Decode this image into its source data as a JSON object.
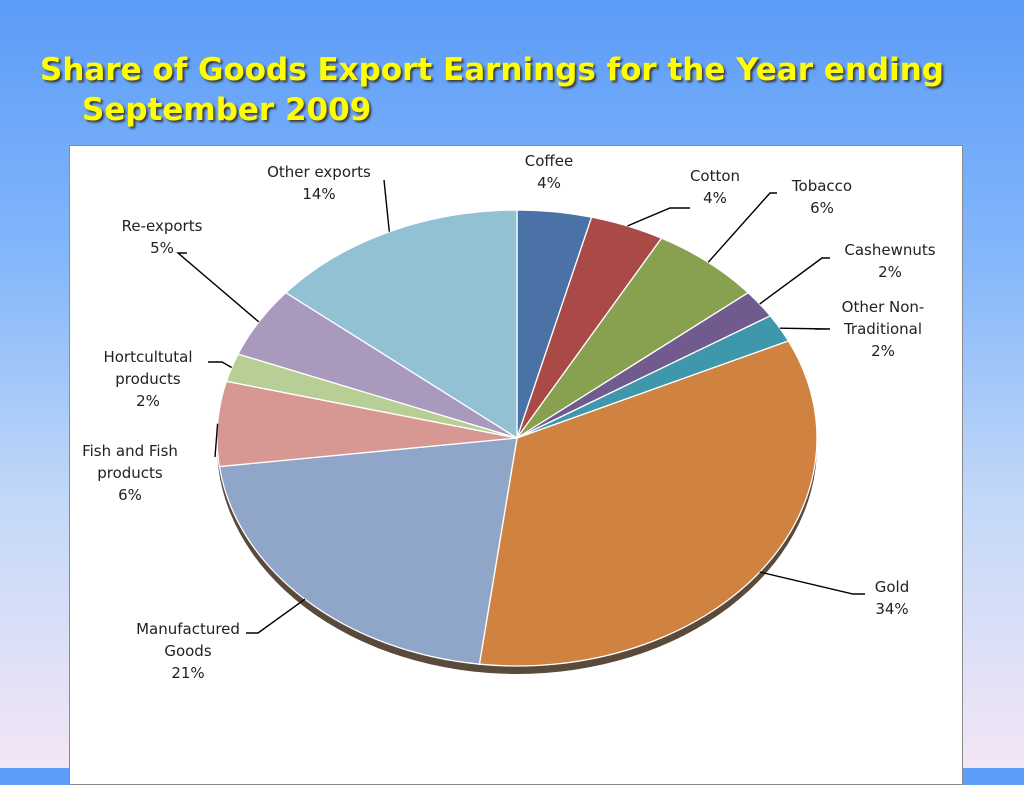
{
  "slide": {
    "title_line1": "Share of Goods Export Earnings for the Year ending",
    "title_line2": "September 2009"
  },
  "chart_data": {
    "type": "pie",
    "title": "Share of Goods Export Earnings for the Year ending September 2009",
    "start_angle_deg": 0,
    "direction": "clockwise",
    "slices": [
      {
        "name": "Coffee",
        "label_lines": [
          "Coffee"
        ],
        "value": 4,
        "value_label": "4%",
        "color": "#4a72a6"
      },
      {
        "name": "Cotton",
        "label_lines": [
          "Cotton"
        ],
        "value": 4,
        "value_label": "4%",
        "color": "#a94a47"
      },
      {
        "name": "Tobacco",
        "label_lines": [
          "Tobacco"
        ],
        "value": 6,
        "value_label": "6%",
        "color": "#87a150"
      },
      {
        "name": "Cashewnuts",
        "label_lines": [
          "Cashewnuts"
        ],
        "value": 2,
        "value_label": "2%",
        "color": "#715a8d"
      },
      {
        "name": "Other Non-Traditional",
        "label_lines": [
          "Other Non-",
          "Traditional"
        ],
        "value": 2,
        "value_label": "2%",
        "color": "#3f97ab"
      },
      {
        "name": "Gold",
        "label_lines": [
          "Gold"
        ],
        "value": 34,
        "value_label": "34%",
        "color": "#d08341"
      },
      {
        "name": "Manufactured Goods",
        "label_lines": [
          "Manufactured",
          "Goods"
        ],
        "value": 21,
        "value_label": "21%",
        "color": "#90a6c9"
      },
      {
        "name": "Fish and Fish products",
        "label_lines": [
          "Fish and Fish",
          "products"
        ],
        "value": 6,
        "value_label": "6%",
        "color": "#d79793"
      },
      {
        "name": "Hortcultutal products",
        "label_lines": [
          "Hortcultutal",
          "products"
        ],
        "value": 2,
        "value_label": "2%",
        "color": "#b7cf94"
      },
      {
        "name": "Re-exports",
        "label_lines": [
          "Re-exports"
        ],
        "value": 5,
        "value_label": "5%",
        "color": "#a899bd"
      },
      {
        "name": "Other exports",
        "label_lines": [
          "Other exports"
        ],
        "value": 14,
        "value_label": "14%",
        "color": "#93c1d4"
      }
    ]
  }
}
